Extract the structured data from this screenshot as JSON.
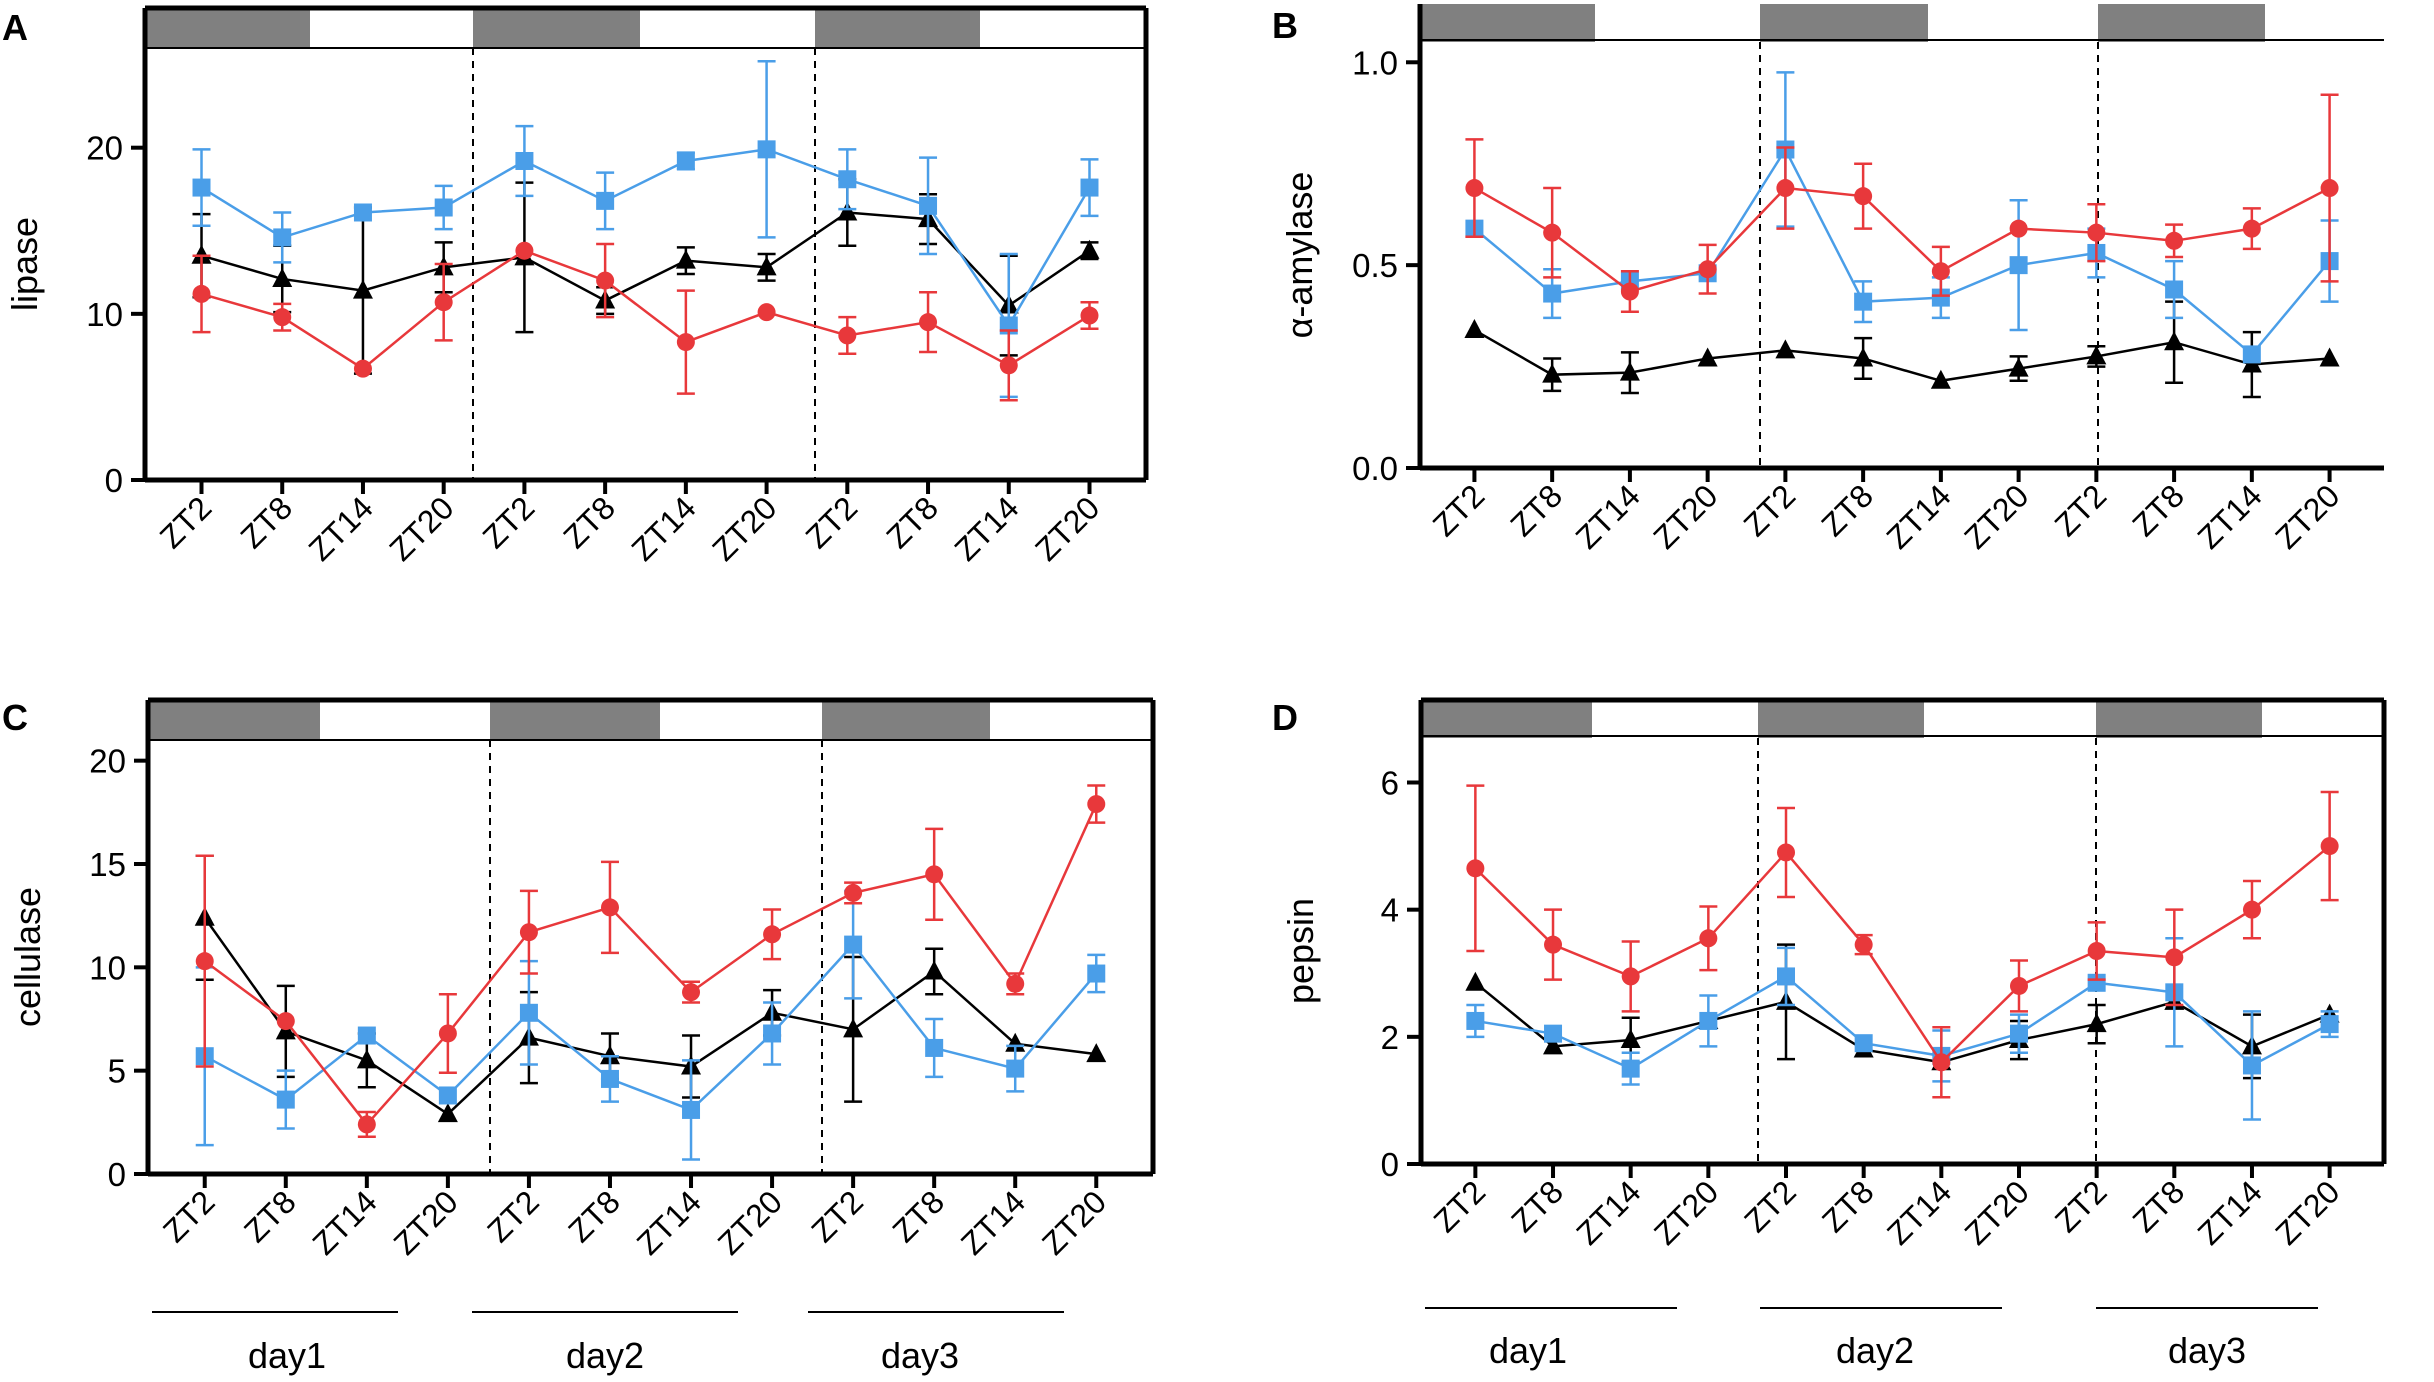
{
  "colors": {
    "red": "#e8383b",
    "blue": "#4a9ee8",
    "black": "#000000",
    "dark_bar": "#808080"
  },
  "x_categories": [
    "ZT2",
    "ZT8",
    "ZT14",
    "ZT20",
    "ZT2",
    "ZT8",
    "ZT14",
    "ZT20",
    "ZT2",
    "ZT8",
    "ZT14",
    "ZT20"
  ],
  "day_labels": [
    "day1",
    "day2",
    "day3"
  ],
  "chart_data": [
    {
      "panel": "A",
      "type": "line",
      "ylabel": "lipase",
      "ylim": [
        0,
        26
      ],
      "yticks": [
        0,
        10,
        20
      ],
      "series": [
        {
          "name": "black",
          "color": "black",
          "marker": "triangle",
          "values": [
            13.5,
            12.1,
            11.4,
            12.8,
            13.4,
            10.8,
            13.2,
            12.8,
            16.1,
            15.7,
            10.5,
            13.8
          ],
          "errors": [
            2.5,
            2.0,
            5.0,
            1.5,
            4.5,
            0.8,
            0.8,
            0.8,
            2.0,
            1.5,
            3.0,
            0.5
          ]
        },
        {
          "name": "blue",
          "color": "blue",
          "marker": "square",
          "values": [
            17.6,
            14.6,
            16.1,
            16.4,
            19.2,
            16.8,
            19.2,
            19.9,
            18.1,
            16.5,
            9.3,
            17.6
          ],
          "errors": [
            2.3,
            1.5,
            0,
            1.3,
            2.1,
            1.7,
            0.5,
            5.3,
            1.8,
            2.9,
            4.3,
            1.7
          ]
        },
        {
          "name": "red",
          "color": "red",
          "marker": "circle",
          "values": [
            11.2,
            9.8,
            6.7,
            10.7,
            13.8,
            12.0,
            8.3,
            10.1,
            8.7,
            9.5,
            6.9,
            9.9
          ],
          "errors": [
            2.3,
            0.8,
            0,
            2.3,
            0,
            2.2,
            3.1,
            0,
            1.1,
            1.8,
            2.1,
            0.8
          ]
        }
      ]
    },
    {
      "panel": "B",
      "type": "line",
      "ylabel": "α-amylase",
      "ylim": [
        0,
        1.05
      ],
      "yticks": [
        "0.0",
        "0.5",
        "1.0"
      ],
      "series": [
        {
          "name": "black",
          "color": "black",
          "marker": "triangle",
          "values": [
            0.34,
            0.23,
            0.235,
            0.27,
            0.29,
            0.27,
            0.215,
            0.245,
            0.275,
            0.31,
            0.255,
            0.27
          ],
          "errors": [
            0,
            0.04,
            0.05,
            0,
            0,
            0.05,
            0,
            0.03,
            0.025,
            0.1,
            0.08,
            0
          ]
        },
        {
          "name": "blue",
          "color": "blue",
          "marker": "square",
          "values": [
            0.59,
            0.43,
            0.46,
            0.48,
            0.785,
            0.41,
            0.42,
            0.5,
            0.53,
            0.44,
            0.28,
            0.51
          ],
          "errors": [
            0,
            0.06,
            0,
            0,
            0.19,
            0.05,
            0.05,
            0.16,
            0.06,
            0.07,
            0,
            0.1
          ]
        },
        {
          "name": "red",
          "color": "red",
          "marker": "circle",
          "values": [
            0.69,
            0.58,
            0.435,
            0.49,
            0.69,
            0.67,
            0.485,
            0.59,
            0.58,
            0.56,
            0.59,
            0.69
          ],
          "errors": [
            0.12,
            0.11,
            0.05,
            0.06,
            0.1,
            0.08,
            0.06,
            0,
            0.07,
            0.04,
            0.05,
            0.23
          ]
        }
      ]
    },
    {
      "panel": "C",
      "type": "line",
      "ylabel": "cellulase",
      "ylim": [
        0,
        21
      ],
      "yticks": [
        0,
        5,
        10,
        15,
        20
      ],
      "series": [
        {
          "name": "black",
          "color": "black",
          "marker": "triangle",
          "values": [
            12.4,
            6.9,
            5.5,
            2.9,
            6.6,
            5.7,
            5.2,
            7.8,
            7.0,
            9.8,
            6.3,
            5.8
          ],
          "errors": [
            3.0,
            2.2,
            1.3,
            0,
            2.2,
            1.1,
            1.5,
            1.1,
            3.5,
            1.1,
            0,
            0
          ]
        },
        {
          "name": "blue",
          "color": "blue",
          "marker": "square",
          "values": [
            5.7,
            3.6,
            6.7,
            3.8,
            7.8,
            4.6,
            3.1,
            6.8,
            11.1,
            6.1,
            5.1,
            9.7
          ],
          "errors": [
            4.3,
            1.4,
            0,
            0,
            2.5,
            1.1,
            2.4,
            1.5,
            2.6,
            1.4,
            1.1,
            0.9
          ]
        },
        {
          "name": "red",
          "color": "red",
          "marker": "circle",
          "values": [
            10.3,
            7.4,
            2.4,
            6.8,
            11.7,
            12.9,
            8.8,
            11.6,
            13.6,
            14.5,
            9.2,
            17.9
          ],
          "errors": [
            5.1,
            0,
            0.6,
            1.9,
            2.0,
            2.2,
            0.5,
            1.2,
            0.5,
            2.2,
            0.5,
            0.9
          ]
        }
      ]
    },
    {
      "panel": "D",
      "type": "line",
      "ylabel": "pepsin",
      "ylim": [
        0,
        6.7
      ],
      "yticks": [
        0,
        2,
        4,
        6
      ],
      "series": [
        {
          "name": "black",
          "color": "black",
          "marker": "triangle",
          "values": [
            2.85,
            1.85,
            1.95,
            2.25,
            2.55,
            1.8,
            1.6,
            1.95,
            2.2,
            2.55,
            1.85,
            2.35
          ],
          "errors": [
            0,
            0,
            0.35,
            0,
            0.9,
            0,
            0,
            0.3,
            0.3,
            0,
            0.5,
            0
          ]
        },
        {
          "name": "blue",
          "color": "blue",
          "marker": "square",
          "values": [
            2.25,
            2.05,
            1.5,
            2.25,
            2.95,
            1.9,
            1.7,
            2.05,
            2.85,
            2.7,
            1.55,
            2.2
          ],
          "errors": [
            0.25,
            0,
            0.25,
            0.4,
            0.45,
            0,
            0.4,
            0.3,
            0,
            0.85,
            0.85,
            0.2
          ]
        },
        {
          "name": "red",
          "color": "red",
          "marker": "circle",
          "values": [
            4.65,
            3.45,
            2.95,
            3.55,
            4.9,
            3.45,
            1.6,
            2.8,
            3.35,
            3.25,
            4.0,
            5.0
          ],
          "errors": [
            1.3,
            0.55,
            0.55,
            0.5,
            0.7,
            0.15,
            0.55,
            0.4,
            0.45,
            0.75,
            0.45,
            0.85
          ]
        }
      ]
    }
  ]
}
